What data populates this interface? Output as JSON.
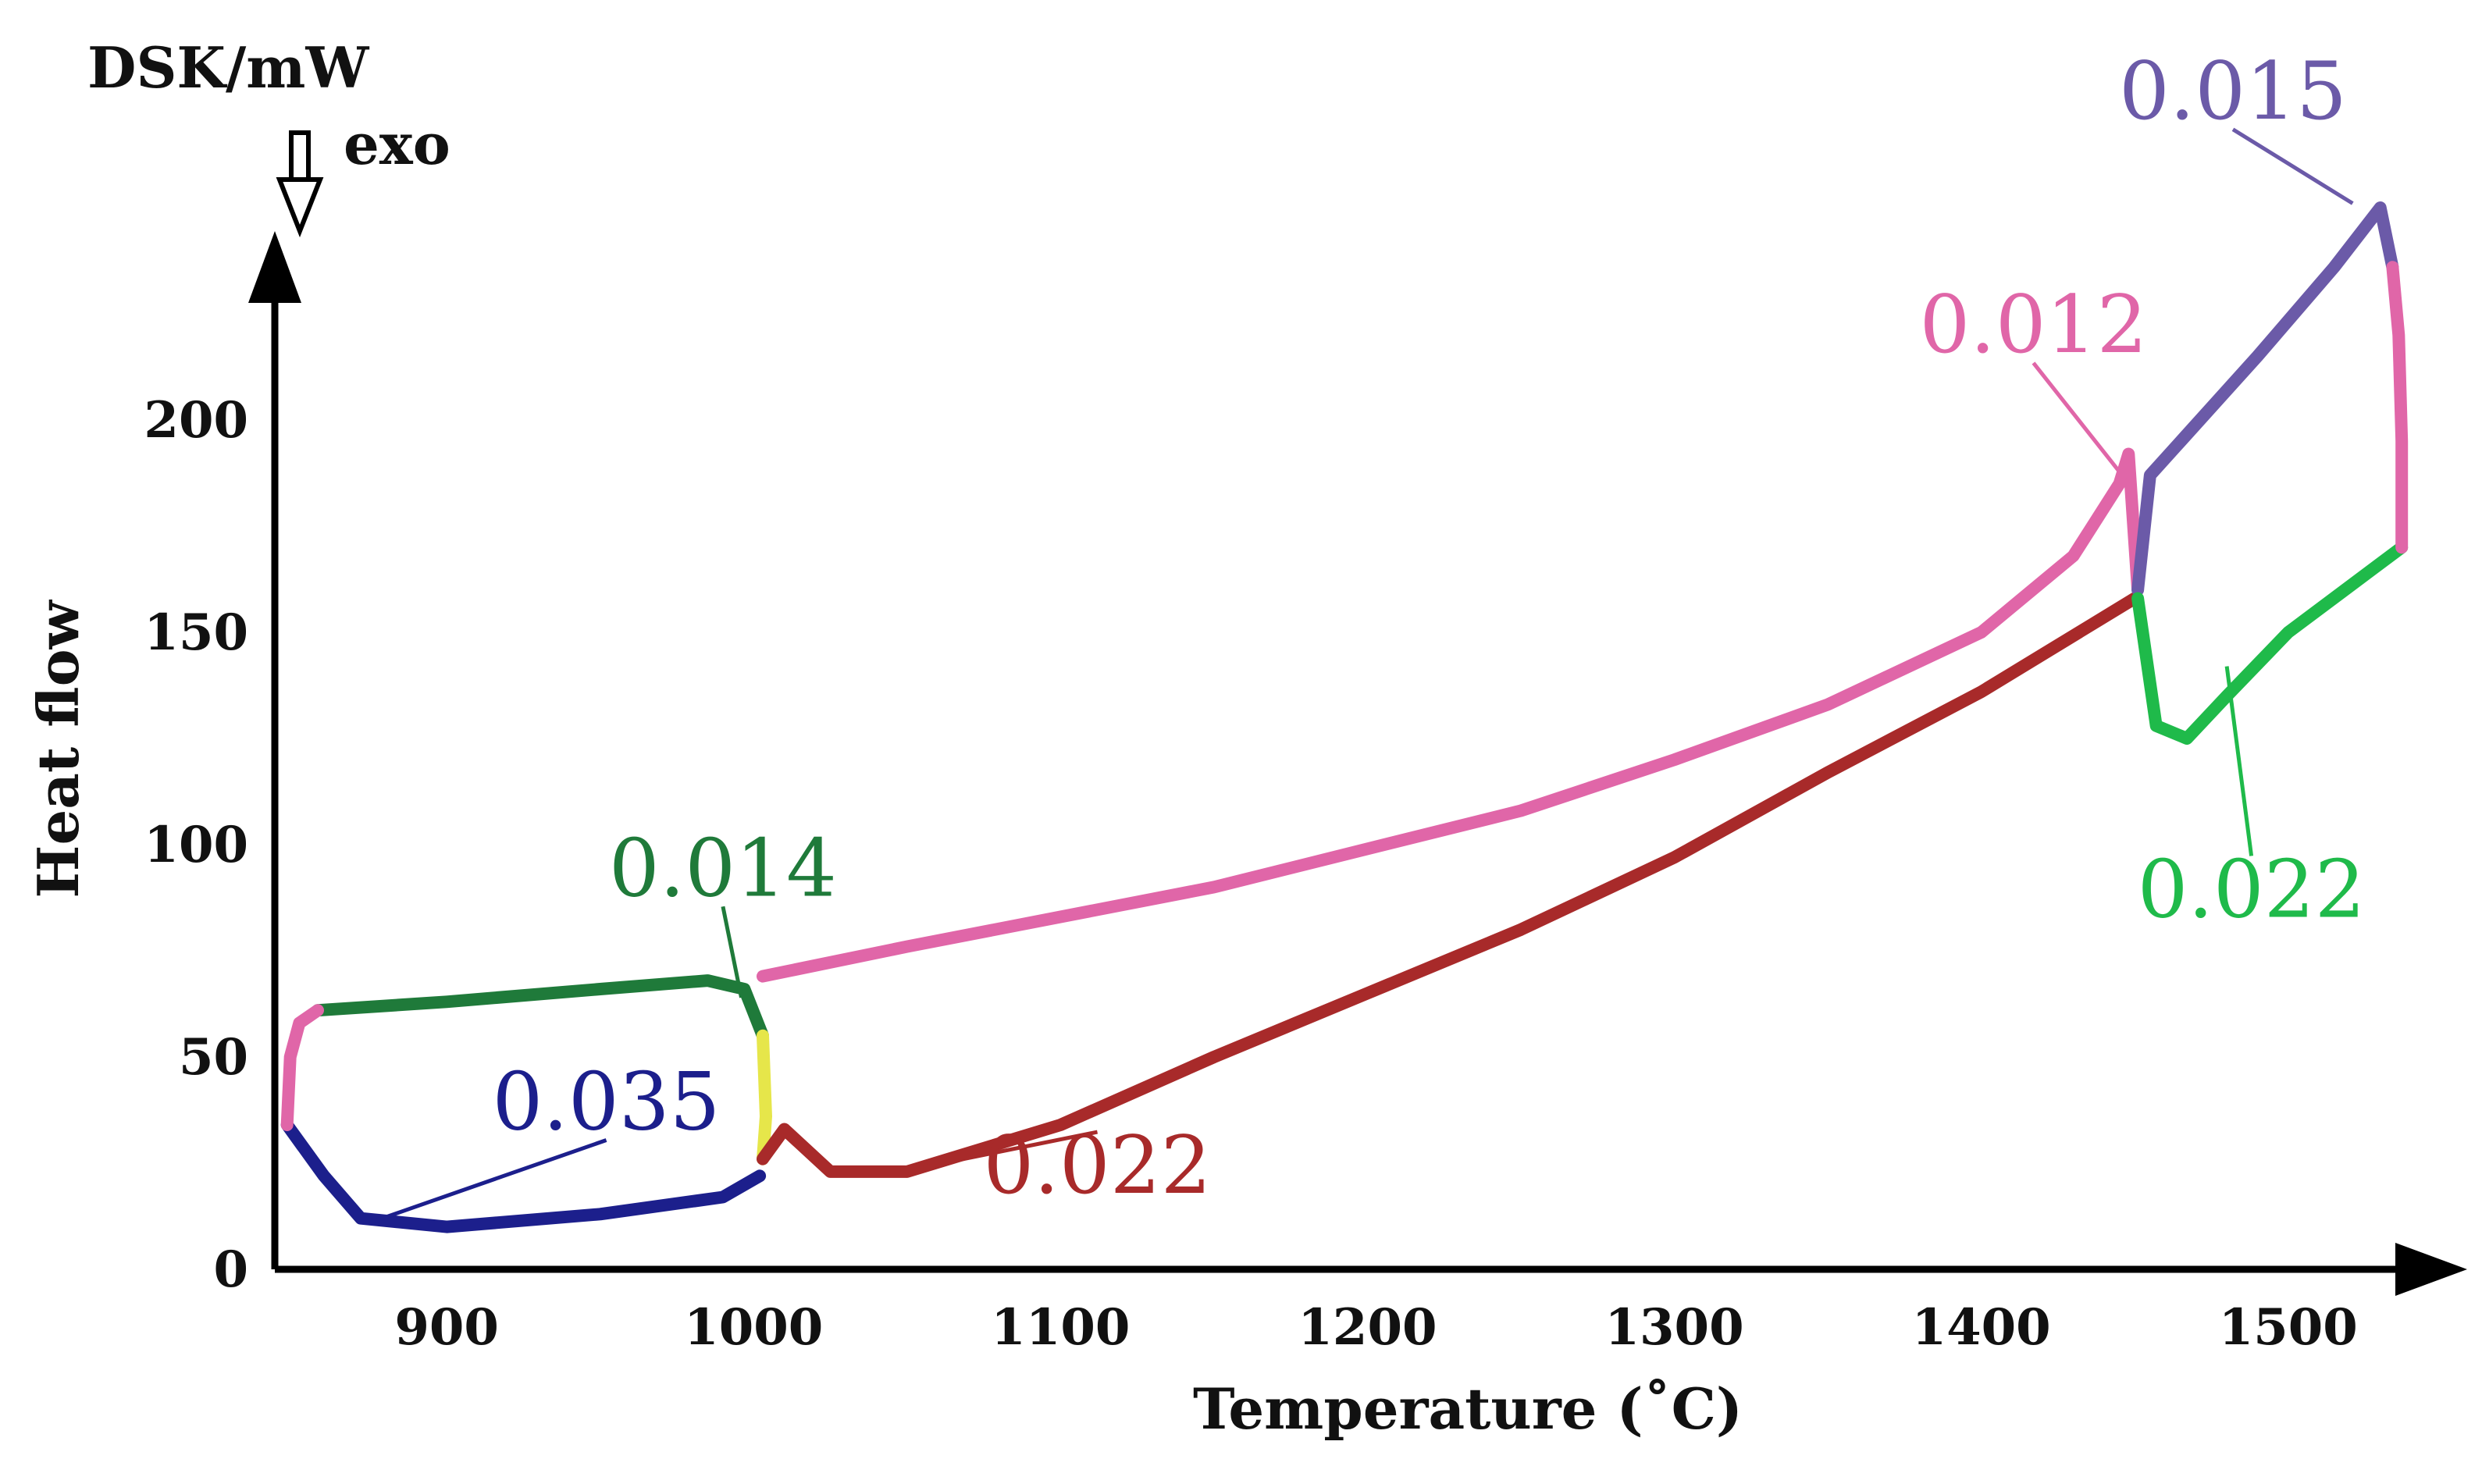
{
  "chart_data": {
    "type": "line",
    "title": "",
    "xlabel": "Temperature (˚C)",
    "ylabel": "Heat flow",
    "unit_label": "DSK/mW",
    "direction_label": "exo",
    "xlim": [
      844,
      1540
    ],
    "ylim": [
      0,
      250
    ],
    "xticks": [
      900,
      1000,
      1100,
      1200,
      1300,
      1400,
      1500
    ],
    "yticks": [
      0,
      50,
      100,
      150,
      200
    ],
    "grid": false,
    "series": [
      {
        "name": "heating-upper-pink",
        "color": "#e066a8",
        "points": [
          [
            1003,
            69
          ],
          [
            1050,
            76
          ],
          [
            1100,
            83
          ],
          [
            1150,
            90
          ],
          [
            1200,
            99
          ],
          [
            1250,
            108
          ],
          [
            1300,
            120
          ],
          [
            1350,
            133
          ],
          [
            1400,
            150
          ],
          [
            1430,
            168
          ],
          [
            1445,
            185
          ],
          [
            1448,
            192
          ],
          [
            1451,
            160
          ]
        ]
      },
      {
        "name": "upper-green-0.014",
        "color": "#1f7a3a",
        "points": [
          [
            858,
            61
          ],
          [
            900,
            63
          ],
          [
            950,
            66
          ],
          [
            985,
            68
          ],
          [
            997,
            66
          ],
          [
            1003,
            55
          ]
        ]
      },
      {
        "name": "lower-blue-0.035",
        "color": "#1c1f8c",
        "points": [
          [
            848,
            34
          ],
          [
            860,
            22
          ],
          [
            872,
            12
          ],
          [
            900,
            10
          ],
          [
            950,
            13
          ],
          [
            990,
            17
          ],
          [
            1002,
            22
          ]
        ]
      },
      {
        "name": "transition-yellow",
        "color": "#e6e64a",
        "points": [
          [
            1003,
            55
          ],
          [
            1004,
            36
          ],
          [
            1003,
            26
          ]
        ]
      },
      {
        "name": "lower-red-0.022",
        "color": "#a82a2a",
        "points": [
          [
            1003,
            26
          ],
          [
            1010,
            33
          ],
          [
            1025,
            23
          ],
          [
            1050,
            23
          ],
          [
            1100,
            34
          ],
          [
            1150,
            50
          ],
          [
            1200,
            65
          ],
          [
            1250,
            80
          ],
          [
            1300,
            97
          ],
          [
            1350,
            117
          ],
          [
            1400,
            136
          ],
          [
            1450,
            158
          ]
        ]
      },
      {
        "name": "upper-purple-0.015",
        "color": "#6b5aa8",
        "points": [
          [
            1451,
            160
          ],
          [
            1455,
            187
          ],
          [
            1465,
            195
          ],
          [
            1490,
            215
          ],
          [
            1515,
            236
          ],
          [
            1530,
            250
          ],
          [
            1534,
            236
          ]
        ]
      },
      {
        "name": "right-green-0.022",
        "color": "#1fba4a",
        "points": [
          [
            1451,
            158
          ],
          [
            1457,
            128
          ],
          [
            1467,
            125
          ],
          [
            1480,
            135
          ],
          [
            1500,
            150
          ],
          [
            1537,
            170
          ]
        ]
      },
      {
        "name": "closing-pink-right",
        "color": "#e066a8",
        "points": [
          [
            1534,
            236
          ],
          [
            1536,
            220
          ],
          [
            1537,
            195
          ],
          [
            1537,
            170
          ]
        ]
      },
      {
        "name": "closing-pink-left",
        "color": "#e066a8",
        "points": [
          [
            848,
            34
          ],
          [
            849,
            50
          ],
          [
            852,
            58
          ],
          [
            858,
            61
          ]
        ]
      }
    ],
    "annotations": [
      {
        "text": "0.035",
        "color": "#1c1f8c",
        "at": [
          952,
          33
        ],
        "points_to": [
          875,
          11
        ]
      },
      {
        "text": "0.014",
        "color": "#1f7a3a",
        "at": [
          990,
          88
        ],
        "points_to": [
          996,
          64
        ]
      },
      {
        "text": "0.022",
        "color": "#a82a2a",
        "at": [
          1112,
          18
        ],
        "points_to": [
          1048,
          23
        ]
      },
      {
        "text": "0.012",
        "color": "#e066a8",
        "at": [
          1417,
          216
        ],
        "points_to": [
          1447,
          186
        ]
      },
      {
        "text": "0.015",
        "color": "#6b5aa8",
        "at": [
          1482,
          271
        ],
        "points_to": [
          1521,
          251
        ]
      },
      {
        "text": "0.022",
        "color": "#1fba4a",
        "at": [
          1488,
          83
        ],
        "points_to": [
          1480,
          142
        ]
      }
    ]
  }
}
